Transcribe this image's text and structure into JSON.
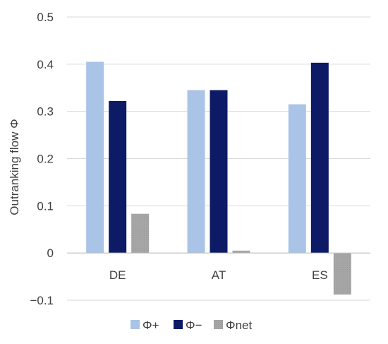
{
  "chart_data": {
    "type": "bar",
    "title": "",
    "xlabel": "",
    "ylabel": "Outranking flow Φ",
    "categories": [
      "DE",
      "AT",
      "ES"
    ],
    "series": [
      {
        "name": "Φ+",
        "values": [
          0.405,
          0.345,
          0.315
        ],
        "color": "#a9c4e6"
      },
      {
        "name": "Φ−",
        "values": [
          0.322,
          0.345,
          0.403
        ],
        "color": "#0d1b66"
      },
      {
        "name": "Φnet",
        "values": [
          0.083,
          0.005,
          -0.088
        ],
        "color": "#a6a6a6"
      }
    ],
    "ylim": [
      -0.1,
      0.5
    ],
    "yticks": [
      -0.1,
      0,
      0.1,
      0.2,
      0.3,
      0.4,
      0.5
    ],
    "ytick_labels": [
      "−0.1",
      "0",
      "0.1",
      "0.2",
      "0.3",
      "0.4",
      "0.5"
    ],
    "grid": true,
    "legend_position": "bottom"
  }
}
